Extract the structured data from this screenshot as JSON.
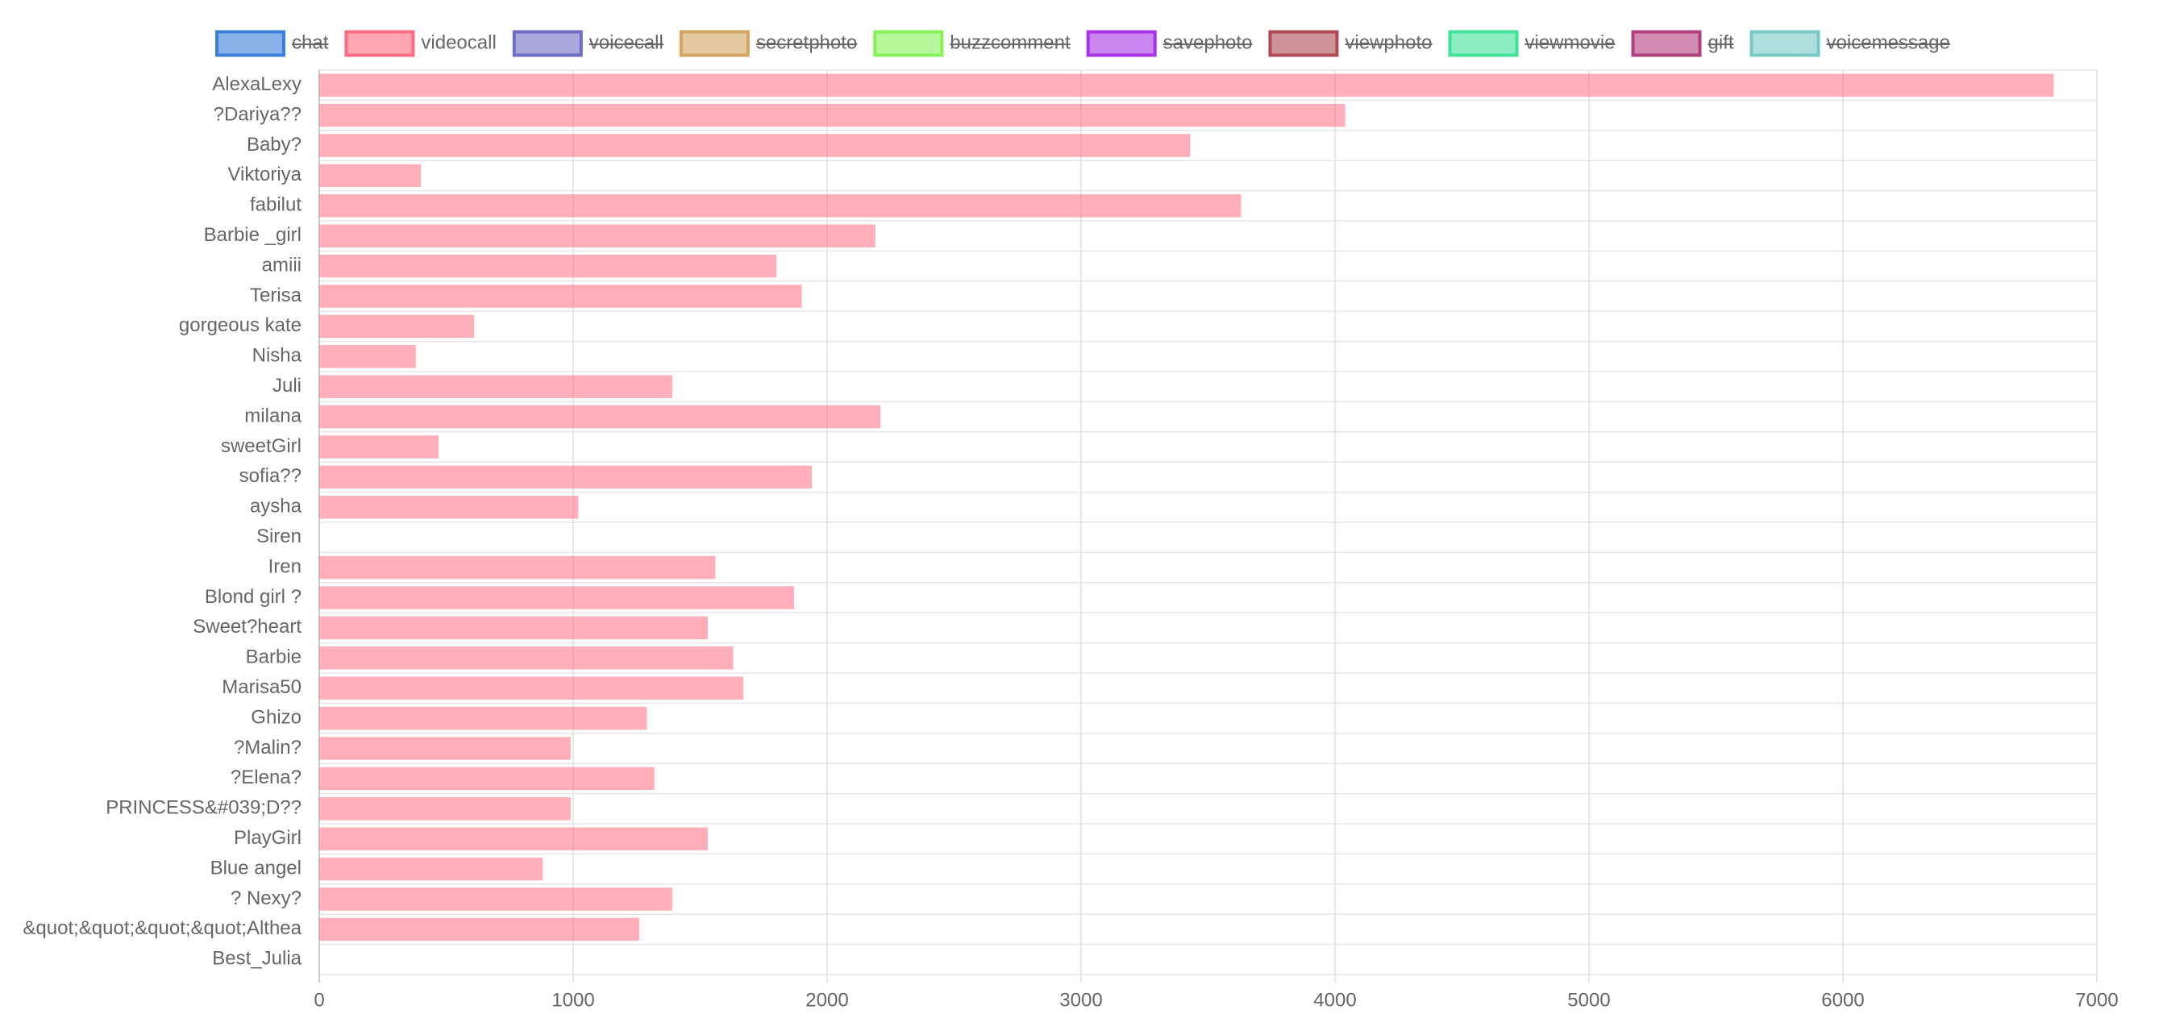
{
  "chart_data": {
    "type": "hbar",
    "categories": [
      "AlexaLexy",
      "?Dariya??",
      "Baby?",
      "Viktoriya",
      "fabilut",
      "Barbie _girl",
      "amiii",
      "Terisa",
      "gorgeous kate",
      "Nisha",
      "Juli",
      "milana",
      "sweetGirl",
      "sofia??",
      "aysha",
      "Siren",
      "Iren",
      "Blond girl ?",
      "Sweet?heart",
      "Barbie",
      "Marisa50",
      "Ghizo",
      "?Malin?",
      "?Elena?",
      "PRINCESS&#039;D??",
      "PlayGirl",
      "Blue angel",
      "? Nexy?",
      "&quot;&quot;&quot;&quot;Althea",
      "Best_Julia"
    ],
    "series": [
      {
        "name": "chat",
        "color": "#3a7fd9",
        "hidden": true
      },
      {
        "name": "videocall",
        "color": "#ff6b81",
        "hidden": false,
        "values": [
          6830,
          4040,
          3430,
          400,
          3630,
          2190,
          1800,
          1900,
          610,
          380,
          1390,
          2210,
          470,
          1940,
          1020,
          0,
          1560,
          1870,
          1530,
          1630,
          1670,
          1290,
          990,
          1320,
          990,
          1530,
          880,
          1390,
          1260,
          0
        ]
      },
      {
        "name": "voicecall",
        "color": "#6f6cc4",
        "hidden": true
      },
      {
        "name": "secretphoto",
        "color": "#d4a561",
        "hidden": true
      },
      {
        "name": "buzzcomment",
        "color": "#86f25a",
        "hidden": true
      },
      {
        "name": "savephoto",
        "color": "#a633e8",
        "hidden": true
      },
      {
        "name": "viewphoto",
        "color": "#b04a55",
        "hidden": true
      },
      {
        "name": "viewmovie",
        "color": "#3fe39a",
        "hidden": true
      },
      {
        "name": "gift",
        "color": "#b03f7d",
        "hidden": true
      },
      {
        "name": "voicemessage",
        "color": "#78c9c6",
        "hidden": true
      }
    ],
    "xlim": [
      0,
      7000
    ],
    "xticks": [
      0,
      1000,
      2000,
      3000,
      4000,
      5000,
      6000,
      7000
    ],
    "grid": true,
    "legend": "top"
  }
}
